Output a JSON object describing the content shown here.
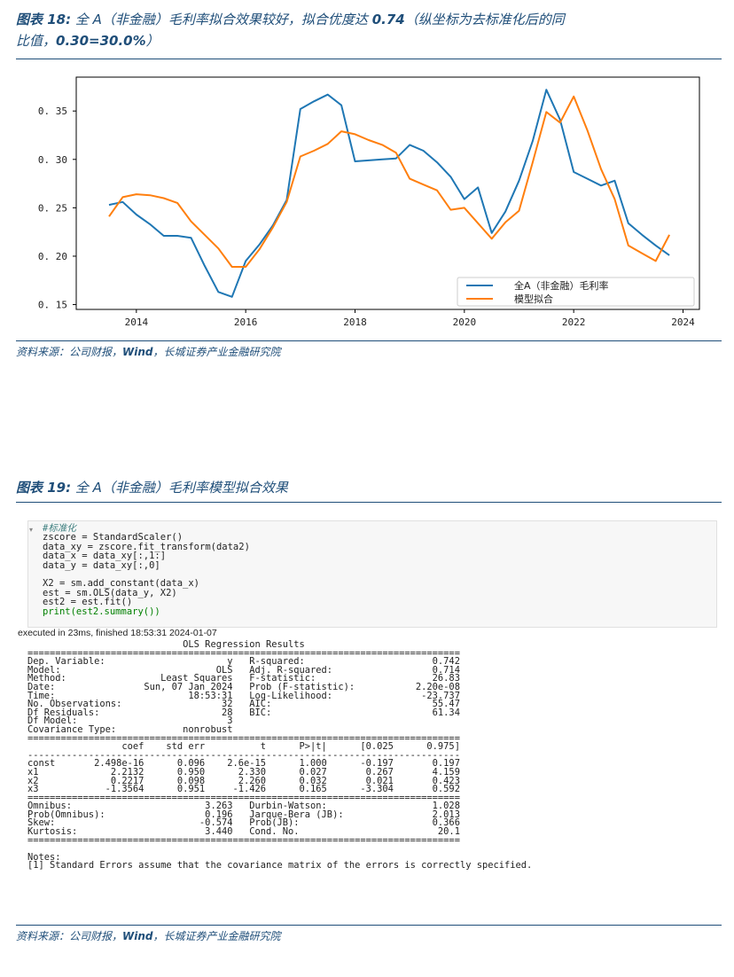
{
  "caption18": {
    "label": "图表 18:",
    "text_a": " 全 A（非金融）毛利率拟合效果较好，拟合优度达 ",
    "r2": "0.74",
    "text_b": "（纵坐标为去标准化后的同",
    "text_c": "比值，",
    "example": "0.30=30.0%",
    "text_d": "）"
  },
  "source1": {
    "prefix": "资料来源：公司财报，",
    "wind": "Wind",
    "suffix": "，长城证券产业金融研究院"
  },
  "caption19": {
    "label": "图表 19:",
    "text": " 全 A（非金融）毛利率模型拟合效果"
  },
  "source2": {
    "prefix": "资料来源：公司财报，",
    "wind": "Wind",
    "suffix": "，长城证券产业金融研究院"
  },
  "chart_data": {
    "type": "line",
    "ylim": [
      0.145,
      0.385
    ],
    "xlim": [
      2012.9,
      2024.3
    ],
    "yticks": [
      0.15,
      0.2,
      0.25,
      0.3,
      0.35
    ],
    "ytick_labels": [
      "0. 15",
      "0. 20",
      "0. 25",
      "0. 30",
      "0. 35"
    ],
    "xticks": [
      2014,
      2016,
      2018,
      2020,
      2022,
      2024
    ],
    "xtick_labels": [
      "2014",
      "2016",
      "2018",
      "2020",
      "2022",
      "2024"
    ],
    "grid": false,
    "legend_position": "bottom-right",
    "series": [
      {
        "name": "全A（非金融）毛利率",
        "color": "#1f77b4",
        "x": [
          2013.5,
          2013.75,
          2014,
          2014.25,
          2014.5,
          2014.75,
          2015,
          2015.25,
          2015.5,
          2015.75,
          2016,
          2016.25,
          2016.5,
          2016.75,
          2017,
          2017.25,
          2017.5,
          2017.75,
          2018,
          2018.25,
          2018.5,
          2018.75,
          2019,
          2019.25,
          2019.5,
          2019.75,
          2020,
          2020.25,
          2020.5,
          2020.75,
          2021,
          2021.25,
          2021.5,
          2021.75,
          2022,
          2022.25,
          2022.5,
          2022.75,
          2023,
          2023.25,
          2023.5,
          2023.75
        ],
        "y": [
          0.253,
          0.256,
          0.243,
          0.233,
          0.221,
          0.221,
          0.219,
          0.19,
          0.163,
          0.158,
          0.195,
          0.212,
          0.232,
          0.258,
          0.352,
          0.36,
          0.367,
          0.356,
          0.298,
          0.299,
          0.3,
          0.301,
          0.315,
          0.309,
          0.297,
          0.282,
          0.259,
          0.271,
          0.224,
          0.246,
          0.278,
          0.319,
          0.372,
          0.341,
          0.287,
          0.28,
          0.273,
          0.278,
          0.234,
          0.222,
          0.211,
          0.201
        ]
      },
      {
        "name": "模型拟合",
        "color": "#ff7f0e",
        "x": [
          2013.5,
          2013.75,
          2014,
          2014.25,
          2014.5,
          2014.75,
          2015,
          2015.25,
          2015.5,
          2015.75,
          2016,
          2016.25,
          2016.5,
          2016.75,
          2017,
          2017.25,
          2017.5,
          2017.75,
          2018,
          2018.25,
          2018.5,
          2018.75,
          2019,
          2019.25,
          2019.5,
          2019.75,
          2020,
          2020.25,
          2020.5,
          2020.75,
          2021,
          2021.25,
          2021.5,
          2021.75,
          2022,
          2022.25,
          2022.5,
          2022.75,
          2023,
          2023.25,
          2023.5,
          2023.75
        ],
        "y": [
          0.241,
          0.261,
          0.264,
          0.263,
          0.26,
          0.255,
          0.236,
          0.222,
          0.208,
          0.189,
          0.189,
          0.207,
          0.23,
          0.256,
          0.303,
          0.309,
          0.316,
          0.329,
          0.326,
          0.32,
          0.315,
          0.307,
          0.28,
          0.274,
          0.268,
          0.248,
          0.25,
          0.234,
          0.218,
          0.235,
          0.247,
          0.297,
          0.349,
          0.338,
          0.365,
          0.33,
          0.29,
          0.259,
          0.211,
          0.203,
          0.195,
          0.222
        ]
      }
    ]
  },
  "code": {
    "comment": "#标准化",
    "lines": [
      "zscore = StandardScaler()",
      "data_xy = zscore.fit_transform(data2)",
      "data_x = data_xy[:,1:]",
      "data_y = data_xy[:,0]",
      "",
      "X2 = sm.add_constant(data_x)",
      "est = sm.OLS(data_y, X2)",
      "est2 = est.fit()",
      "print(est2.summary())"
    ],
    "executed": "executed in 23ms, finished 18:53:31 2024-01-07"
  },
  "ols_output": {
    "title": "                            OLS Regression Results                            ",
    "rows": [
      "==============================================================================",
      "Dep. Variable:                      y   R-squared:                       0.742",
      "Model:                            OLS   Adj. R-squared:                  0.714",
      "Method:                 Least Squares   F-statistic:                     26.83",
      "Date:                Sun, 07 Jan 2024   Prob (F-statistic):           2.20e-08",
      "Time:                        18:53:31   Log-Likelihood:                -23.737",
      "No. Observations:                  32   AIC:                             55.47",
      "Df Residuals:                      28   BIC:                             61.34",
      "Df Model:                           3                                         ",
      "Covariance Type:            nonrobust                                         ",
      "==============================================================================",
      "                 coef    std err          t      P>|t|      [0.025      0.975]",
      "------------------------------------------------------------------------------",
      "const       2.498e-16      0.096    2.6e-15      1.000      -0.197       0.197",
      "x1             2.2132      0.950      2.330      0.027       0.267       4.159",
      "x2             0.2217      0.098      2.260      0.032       0.021       0.423",
      "x3            -1.3564      0.951     -1.426      0.165      -3.304       0.592",
      "==============================================================================",
      "Omnibus:                        3.263   Durbin-Watson:                   1.028",
      "Prob(Omnibus):                  0.196   Jarque-Bera (JB):                2.013",
      "Skew:                          -0.574   Prob(JB):                        0.366",
      "Kurtosis:                       3.440   Cond. No.                         20.1",
      "=============================================================================="
    ],
    "notes_label": "Notes:",
    "note1": "[1] Standard Errors assume that the covariance matrix of the errors is correctly specified."
  }
}
